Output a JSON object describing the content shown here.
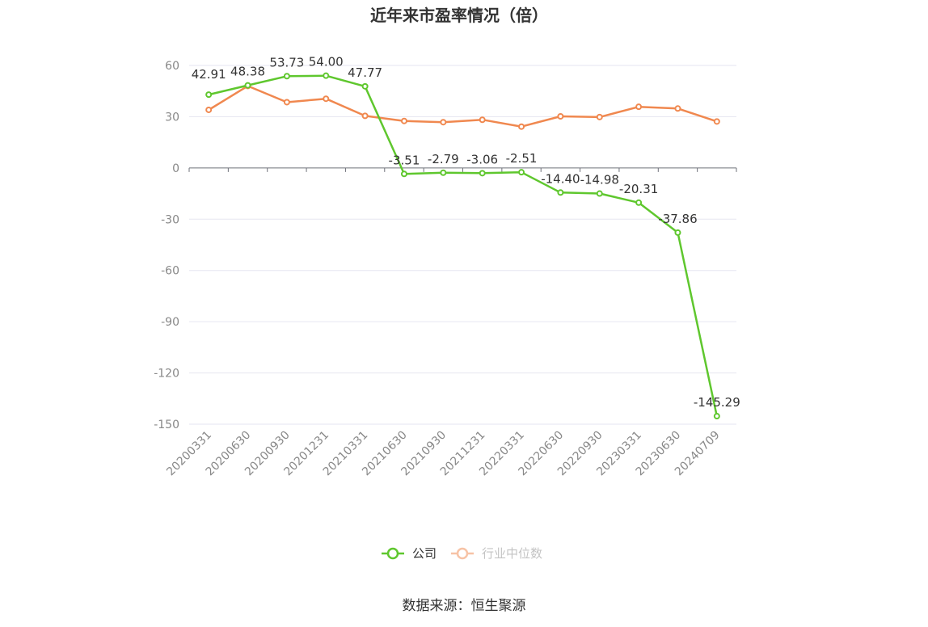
{
  "chart_data": {
    "type": "line",
    "title": "近年来市盈率情况（倍）",
    "categories": [
      "20200331",
      "20200630",
      "20200930",
      "20201231",
      "20210331",
      "20210630",
      "20210930",
      "20211231",
      "20220331",
      "20220630",
      "20220930",
      "20230331",
      "20230630",
      "20240709"
    ],
    "ylim": [
      -150,
      60
    ],
    "yticks": [
      "60",
      "30",
      "0",
      "-30",
      "-60",
      "-90",
      "-120",
      "-150"
    ],
    "grid": true,
    "legend_position": "bottom",
    "series": [
      {
        "name": "公司",
        "color": "#5fc72e",
        "values": [
          42.91,
          48.38,
          53.73,
          54.0,
          47.77,
          -3.51,
          -2.79,
          -3.06,
          -2.51,
          -14.4,
          -14.98,
          -20.31,
          -37.86,
          -145.29
        ],
        "labels": [
          "42.91",
          "48.38",
          "53.73",
          "54.00",
          "47.77",
          "-3.51",
          "-2.79",
          "-3.06",
          "-2.51",
          "-14.40",
          "-14.98",
          "-20.31",
          "-37.86",
          "-145.29"
        ]
      },
      {
        "name": "行业中位数",
        "color": "#f0884f",
        "values": [
          34.0,
          48.0,
          38.5,
          40.5,
          30.5,
          27.5,
          26.8,
          28.2,
          24.2,
          30.2,
          29.8,
          35.8,
          34.8,
          27.2
        ]
      }
    ],
    "source": "数据来源：恒生聚源"
  }
}
